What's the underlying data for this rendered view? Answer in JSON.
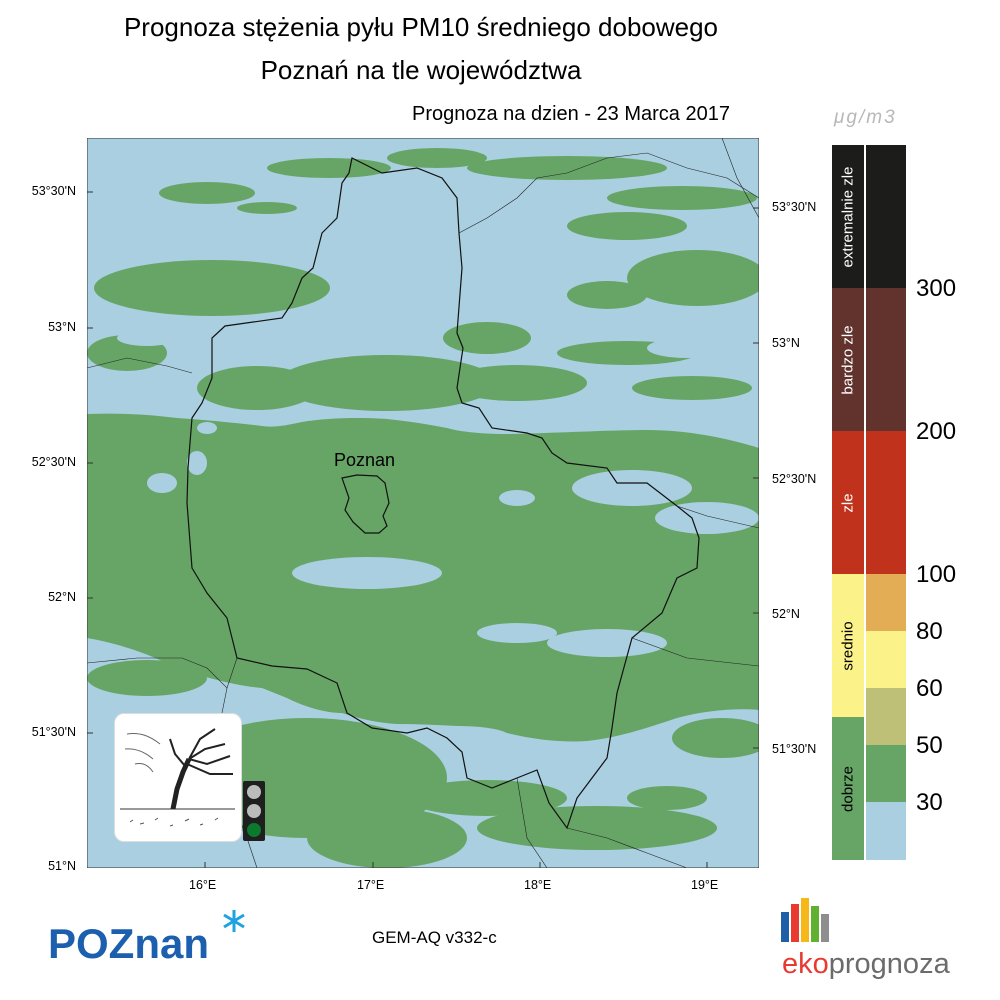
{
  "header": {
    "title_line1": "Prognoza stężenia pyłu PM10 średniego dobowego",
    "title_line2": "Poznań na tle województwa",
    "date_label": "Prognoza na dzien -  23 Marca 2017"
  },
  "map": {
    "city_label": "Poznan",
    "lat_ticks_left": [
      "53°30'N",
      "53°N",
      "52°30'N",
      "52°N",
      "51°30'N",
      "51°N"
    ],
    "lat_ticks_right": [
      "53°30'N",
      "53°N",
      "52°30'N",
      "52°N",
      "51°30'N"
    ],
    "lon_ticks": [
      "16°E",
      "17°E",
      "18°E",
      "19°E"
    ],
    "colors": {
      "water_light": "#a9cfe0",
      "good": "#66a566",
      "border": "#111111"
    }
  },
  "legend": {
    "unit": "μg/m3",
    "categories": [
      {
        "label": "extremalnie zle",
        "color": "#1c1c1a"
      },
      {
        "label": "bardzo zle",
        "color": "#62322d"
      },
      {
        "label": "zle",
        "color": "#c0321c"
      },
      {
        "label": "srednio",
        "color": "#fbf28a"
      },
      {
        "label": "dobrze",
        "color": "#66a566"
      }
    ],
    "scale_colors": [
      "#1c1c1a",
      "#62322d",
      "#c0321c",
      "#e2ad55",
      "#fbf28a",
      "#bec078",
      "#66a566",
      "#a9cfe0"
    ],
    "scale_values": [
      "300",
      "200",
      "100",
      "80",
      "60",
      "50",
      "30"
    ]
  },
  "traffic_light": {
    "active": "green-light",
    "active_color": "#0b7a2c",
    "inactive_color": "#bcbcbc"
  },
  "footer": {
    "city_brand": "POZnan",
    "model": "GEM-AQ v332-c",
    "eko_prefix": "eko",
    "eko_suffix": "prognoza",
    "eko_bars": [
      "#1f5fa8",
      "#e83a2f",
      "#f6b719",
      "#5fb12f",
      "#8e8e8e"
    ]
  }
}
